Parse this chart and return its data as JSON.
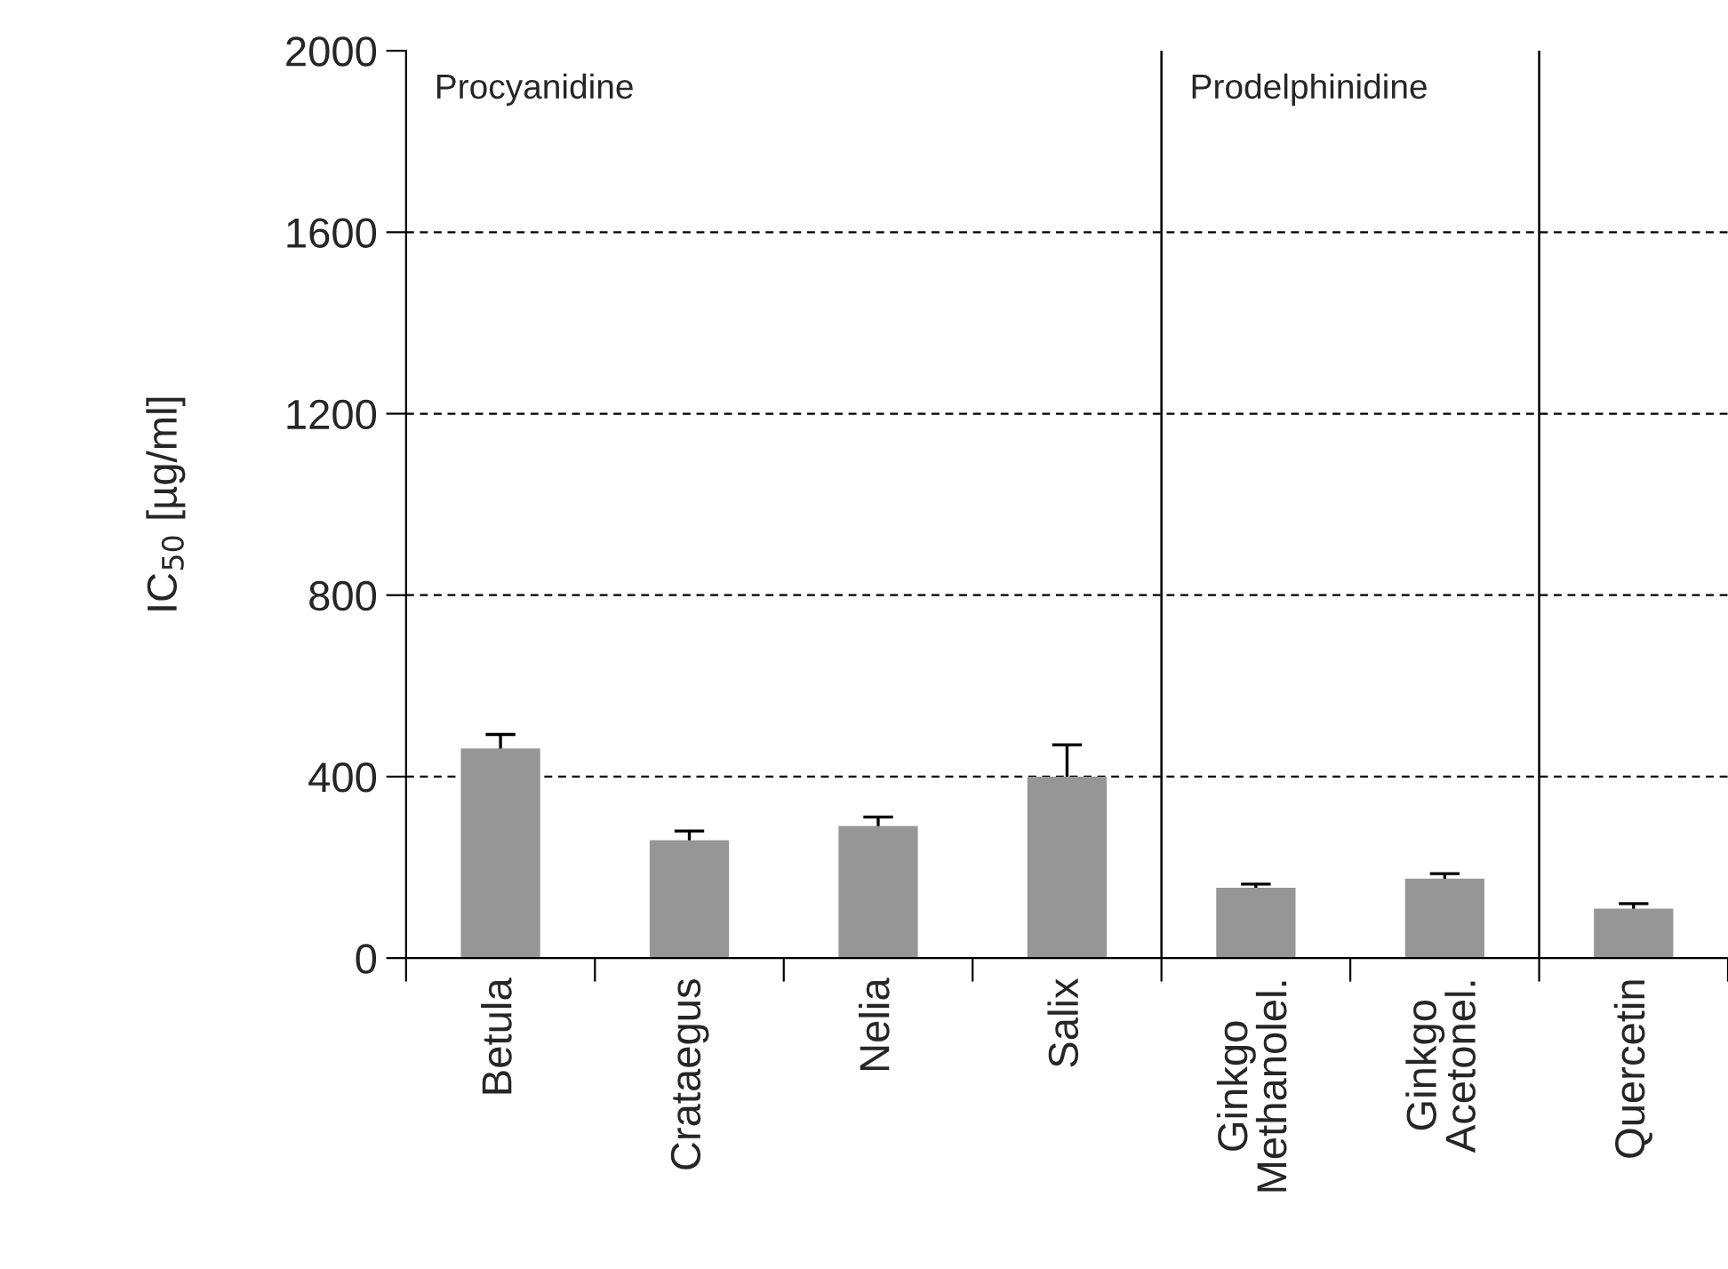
{
  "chart_data": {
    "type": "bar",
    "ylabel": "IC$_{50}$ [µg/ml]",
    "categories": [
      "Betula",
      "Crataegus",
      "Nelia",
      "Salix",
      "Ginkgo\nMethanolel.",
      "Ginkgo\nAcetonel.",
      "Quercetin"
    ],
    "values": [
      462,
      260,
      291,
      400,
      155,
      175,
      109
    ],
    "errors": [
      31,
      20,
      20,
      70,
      8,
      11,
      11
    ],
    "color": "#969696",
    "ylim": [
      0,
      2000
    ],
    "yticks": [
      0,
      400,
      800,
      1200,
      1600,
      2000
    ],
    "grid": "y",
    "annotations": [
      "Procyanidine",
      "Prodelphinidine"
    ]
  }
}
